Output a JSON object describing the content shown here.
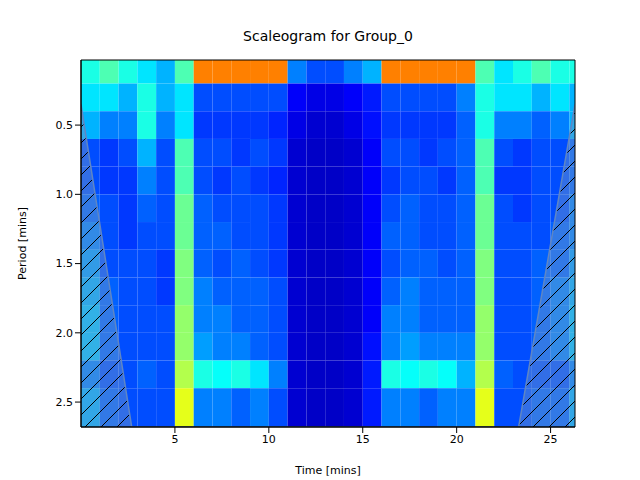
{
  "chart_data": {
    "type": "heatmap",
    "title": "Scaleogram for Group_0",
    "x_label": "Time [mins]",
    "y_label": "Period [mins]",
    "xlim": [
      0,
      26.3
    ],
    "ylim": [
      0.03,
      2.68
    ],
    "xticks": [
      5,
      10,
      15,
      20,
      25
    ],
    "yticks": [
      0.5,
      {
        "value": 1,
        "label": "1.0"
      },
      1.5,
      {
        "value": 2,
        "label": "2.0"
      },
      2.5
    ],
    "x_edges": [
      0,
      1,
      2,
      3,
      4,
      5,
      6,
      7,
      8,
      9,
      10,
      11,
      12,
      13,
      14,
      15,
      16,
      17,
      18,
      19,
      20,
      21,
      22,
      23,
      24,
      25,
      26,
      26.3
    ],
    "y_edges": [
      0.03,
      0.2,
      0.4,
      0.6,
      0.8,
      1.0,
      1.2,
      1.4,
      1.6,
      1.8,
      2.0,
      2.2,
      2.4,
      2.68
    ],
    "zlim": [
      0,
      1
    ],
    "z": [
      [
        0.4,
        0.45,
        0.4,
        0.35,
        0.3,
        0.45,
        0.75,
        0.75,
        0.75,
        0.75,
        0.75,
        0.25,
        0.2,
        0.2,
        0.25,
        0.3,
        0.75,
        0.75,
        0.75,
        0.75,
        0.75,
        0.45,
        0.35,
        0.4,
        0.45,
        0.4,
        0.4
      ],
      [
        0.35,
        0.35,
        0.3,
        0.4,
        0.3,
        0.35,
        0.2,
        0.2,
        0.2,
        0.2,
        0.2,
        0.12,
        0.1,
        0.1,
        0.12,
        0.15,
        0.2,
        0.2,
        0.2,
        0.2,
        0.25,
        0.4,
        0.35,
        0.35,
        0.3,
        0.35,
        0.3
      ],
      [
        0.3,
        0.25,
        0.25,
        0.4,
        0.25,
        0.35,
        0.18,
        0.18,
        0.18,
        0.18,
        0.16,
        0.1,
        0.08,
        0.08,
        0.1,
        0.14,
        0.18,
        0.18,
        0.18,
        0.18,
        0.22,
        0.4,
        0.25,
        0.25,
        0.22,
        0.25,
        0.3
      ],
      [
        0.2,
        0.18,
        0.2,
        0.3,
        0.2,
        0.45,
        0.2,
        0.2,
        0.18,
        0.2,
        0.18,
        0.08,
        0.07,
        0.07,
        0.08,
        0.12,
        0.2,
        0.2,
        0.18,
        0.2,
        0.22,
        0.45,
        0.2,
        0.18,
        0.2,
        0.2,
        0.22
      ],
      [
        0.2,
        0.18,
        0.18,
        0.25,
        0.2,
        0.45,
        0.2,
        0.18,
        0.2,
        0.18,
        0.16,
        0.08,
        0.07,
        0.07,
        0.08,
        0.12,
        0.18,
        0.2,
        0.2,
        0.18,
        0.22,
        0.45,
        0.18,
        0.18,
        0.2,
        0.2,
        0.22
      ],
      [
        0.22,
        0.2,
        0.18,
        0.22,
        0.2,
        0.48,
        0.22,
        0.2,
        0.2,
        0.2,
        0.18,
        0.08,
        0.07,
        0.07,
        0.08,
        0.12,
        0.2,
        0.22,
        0.2,
        0.2,
        0.22,
        0.48,
        0.2,
        0.18,
        0.2,
        0.2,
        0.25
      ],
      [
        0.25,
        0.2,
        0.18,
        0.2,
        0.2,
        0.48,
        0.22,
        0.22,
        0.2,
        0.2,
        0.18,
        0.08,
        0.07,
        0.07,
        0.08,
        0.12,
        0.22,
        0.22,
        0.2,
        0.2,
        0.22,
        0.48,
        0.2,
        0.2,
        0.2,
        0.22,
        0.25
      ],
      [
        0.28,
        0.2,
        0.2,
        0.2,
        0.18,
        0.5,
        0.22,
        0.2,
        0.22,
        0.2,
        0.18,
        0.08,
        0.07,
        0.07,
        0.08,
        0.12,
        0.2,
        0.22,
        0.22,
        0.2,
        0.22,
        0.5,
        0.2,
        0.2,
        0.22,
        0.22,
        0.28
      ],
      [
        0.3,
        0.22,
        0.2,
        0.2,
        0.18,
        0.5,
        0.25,
        0.22,
        0.22,
        0.22,
        0.2,
        0.08,
        0.07,
        0.07,
        0.08,
        0.12,
        0.22,
        0.25,
        0.22,
        0.22,
        0.22,
        0.5,
        0.2,
        0.2,
        0.22,
        0.25,
        0.3
      ],
      [
        0.32,
        0.22,
        0.2,
        0.2,
        0.2,
        0.52,
        0.25,
        0.25,
        0.22,
        0.22,
        0.2,
        0.08,
        0.07,
        0.07,
        0.08,
        0.12,
        0.25,
        0.25,
        0.22,
        0.22,
        0.22,
        0.52,
        0.2,
        0.2,
        0.22,
        0.25,
        0.32
      ],
      [
        0.32,
        0.22,
        0.2,
        0.2,
        0.2,
        0.52,
        0.28,
        0.25,
        0.25,
        0.22,
        0.2,
        0.08,
        0.07,
        0.07,
        0.08,
        0.14,
        0.25,
        0.28,
        0.25,
        0.25,
        0.25,
        0.52,
        0.2,
        0.2,
        0.22,
        0.25,
        0.32
      ],
      [
        0.25,
        0.2,
        0.2,
        0.22,
        0.2,
        0.55,
        0.4,
        0.38,
        0.4,
        0.35,
        0.25,
        0.08,
        0.07,
        0.07,
        0.08,
        0.15,
        0.4,
        0.38,
        0.4,
        0.38,
        0.3,
        0.55,
        0.22,
        0.2,
        0.2,
        0.2,
        0.25
      ],
      [
        0.3,
        0.22,
        0.2,
        0.2,
        0.2,
        0.6,
        0.25,
        0.25,
        0.22,
        0.25,
        0.2,
        0.08,
        0.07,
        0.07,
        0.08,
        0.15,
        0.25,
        0.25,
        0.22,
        0.25,
        0.25,
        0.6,
        0.2,
        0.2,
        0.22,
        0.22,
        0.3
      ]
    ],
    "coi": {
      "x": [
        0,
        2.7,
        23.3,
        26.3
      ],
      "y": [
        0.35,
        2.68,
        2.68,
        0.35
      ]
    }
  }
}
